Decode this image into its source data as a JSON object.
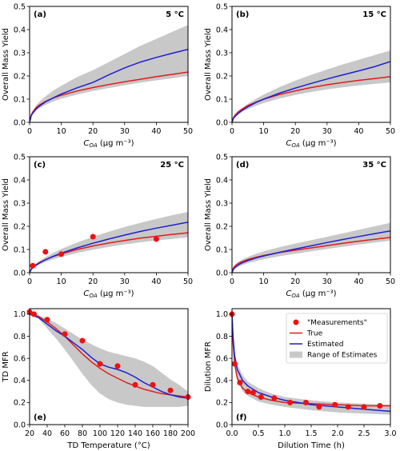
{
  "colors": {
    "true": "#e31a1c",
    "estimated": "#1f1fd1",
    "range": "#c8c8c8",
    "measurement": "#ee1111"
  },
  "chart_data": [
    {
      "type": "line",
      "panel_label": "(a)",
      "temp_label": "5 °C",
      "xlabel_var": "C",
      "xlabel_sub": "OA",
      "xlabel_unit": " (μg m⁻³)",
      "ylabel": "Overall Mass Yield",
      "xlim": [
        0,
        50
      ],
      "ylim": [
        0,
        0.5
      ],
      "xticks": [
        0,
        10,
        20,
        30,
        40,
        50
      ],
      "yticks": [
        0,
        0.1,
        0.2,
        0.3,
        0.4,
        0.5
      ],
      "x": [
        0,
        0.5,
        1,
        2,
        3,
        5,
        7.5,
        10,
        15,
        20,
        25,
        30,
        35,
        40,
        45,
        50
      ],
      "series": [
        {
          "name": "True",
          "values": [
            0,
            0.032,
            0.045,
            0.062,
            0.074,
            0.09,
            0.105,
            0.117,
            0.135,
            0.15,
            0.163,
            0.175,
            0.186,
            0.197,
            0.207,
            0.217
          ]
        },
        {
          "name": "Estimated",
          "values": [
            0,
            0.028,
            0.04,
            0.057,
            0.069,
            0.088,
            0.106,
            0.122,
            0.149,
            0.172,
            0.205,
            0.235,
            0.26,
            0.28,
            0.298,
            0.315
          ]
        }
      ],
      "band_lower": [
        0,
        0.024,
        0.035,
        0.05,
        0.06,
        0.075,
        0.09,
        0.102,
        0.12,
        0.135,
        0.148,
        0.16,
        0.171,
        0.181,
        0.19,
        0.2
      ],
      "band_upper": [
        0,
        0.035,
        0.05,
        0.072,
        0.088,
        0.112,
        0.137,
        0.158,
        0.195,
        0.225,
        0.26,
        0.295,
        0.33,
        0.36,
        0.39,
        0.42
      ]
    },
    {
      "type": "line",
      "panel_label": "(b)",
      "temp_label": "15 °C",
      "xlabel_var": "C",
      "xlabel_sub": "OA",
      "xlabel_unit": " (μg m⁻³)",
      "ylabel": "Overall Mass Yield",
      "xlim": [
        0,
        50
      ],
      "ylim": [
        0,
        0.5
      ],
      "xticks": [
        0,
        10,
        20,
        30,
        40,
        50
      ],
      "yticks": [
        0,
        0.1,
        0.2,
        0.3,
        0.4,
        0.5
      ],
      "x": [
        0,
        0.5,
        1,
        2,
        3,
        5,
        7.5,
        10,
        15,
        20,
        25,
        30,
        35,
        40,
        45,
        50
      ],
      "series": [
        {
          "name": "True",
          "values": [
            0,
            0.022,
            0.032,
            0.046,
            0.056,
            0.072,
            0.087,
            0.1,
            0.12,
            0.136,
            0.15,
            0.162,
            0.172,
            0.181,
            0.189,
            0.197
          ]
        },
        {
          "name": "Estimated",
          "values": [
            0,
            0.018,
            0.026,
            0.039,
            0.05,
            0.067,
            0.085,
            0.1,
            0.126,
            0.148,
            0.168,
            0.187,
            0.205,
            0.222,
            0.24,
            0.262
          ]
        }
      ],
      "band_lower": [
        0,
        0.016,
        0.023,
        0.034,
        0.043,
        0.057,
        0.071,
        0.083,
        0.103,
        0.118,
        0.131,
        0.142,
        0.151,
        0.159,
        0.166,
        0.172
      ],
      "band_upper": [
        0,
        0.022,
        0.032,
        0.047,
        0.059,
        0.08,
        0.101,
        0.12,
        0.152,
        0.18,
        0.205,
        0.228,
        0.25,
        0.27,
        0.29,
        0.31
      ]
    },
    {
      "type": "line",
      "panel_label": "(c)",
      "temp_label": "25 °C",
      "xlabel_var": "C",
      "xlabel_sub": "OA",
      "xlabel_unit": " (μg m⁻³)",
      "ylabel": "Overall Mass Yield",
      "xlim": [
        0,
        50
      ],
      "ylim": [
        0,
        0.5
      ],
      "xticks": [
        0,
        10,
        20,
        30,
        40,
        50
      ],
      "yticks": [
        0,
        0.1,
        0.2,
        0.3,
        0.4,
        0.5
      ],
      "x": [
        0,
        0.5,
        1,
        2,
        3,
        5,
        7.5,
        10,
        15,
        20,
        25,
        30,
        35,
        40,
        45,
        50
      ],
      "series": [
        {
          "name": "True",
          "values": [
            0,
            0.016,
            0.023,
            0.034,
            0.043,
            0.056,
            0.07,
            0.081,
            0.1,
            0.115,
            0.128,
            0.139,
            0.149,
            0.157,
            0.165,
            0.172
          ]
        },
        {
          "name": "Estimated",
          "values": [
            0,
            0.014,
            0.021,
            0.032,
            0.041,
            0.056,
            0.071,
            0.084,
            0.107,
            0.127,
            0.145,
            0.162,
            0.178,
            0.192,
            0.205,
            0.218
          ]
        }
      ],
      "band_lower": [
        0,
        0.012,
        0.018,
        0.027,
        0.034,
        0.046,
        0.058,
        0.068,
        0.085,
        0.099,
        0.111,
        0.122,
        0.131,
        0.139,
        0.146,
        0.153
      ],
      "band_upper": [
        0,
        0.017,
        0.025,
        0.038,
        0.049,
        0.067,
        0.086,
        0.102,
        0.13,
        0.155,
        0.177,
        0.197,
        0.215,
        0.232,
        0.248,
        0.262
      ],
      "points": {
        "name": "Measurements",
        "x": [
          1,
          5,
          10,
          20,
          40
        ],
        "y": [
          0.03,
          0.09,
          0.08,
          0.155,
          0.145
        ]
      }
    },
    {
      "type": "line",
      "panel_label": "(d)",
      "temp_label": "35 °C",
      "xlabel_var": "C",
      "xlabel_sub": "OA",
      "xlabel_unit": " (μg m⁻³)",
      "ylabel": "Overall Mass Yield",
      "xlim": [
        0,
        50
      ],
      "ylim": [
        0,
        0.5
      ],
      "xticks": [
        0,
        10,
        20,
        30,
        40,
        50
      ],
      "yticks": [
        0,
        0.1,
        0.2,
        0.3,
        0.4,
        0.5
      ],
      "x": [
        0,
        0.5,
        1,
        2,
        3,
        5,
        7.5,
        10,
        15,
        20,
        25,
        30,
        35,
        40,
        45,
        50
      ],
      "series": [
        {
          "name": "True",
          "values": [
            0,
            0.022,
            0.03,
            0.04,
            0.047,
            0.057,
            0.066,
            0.074,
            0.087,
            0.097,
            0.107,
            0.117,
            0.127,
            0.136,
            0.144,
            0.152
          ]
        },
        {
          "name": "Estimated",
          "values": [
            0,
            0.016,
            0.023,
            0.033,
            0.041,
            0.052,
            0.063,
            0.072,
            0.088,
            0.102,
            0.116,
            0.13,
            0.143,
            0.156,
            0.168,
            0.18
          ]
        }
      ],
      "band_lower": [
        0,
        0.012,
        0.018,
        0.026,
        0.032,
        0.041,
        0.05,
        0.058,
        0.071,
        0.082,
        0.092,
        0.102,
        0.112,
        0.121,
        0.13,
        0.138
      ],
      "band_upper": [
        0,
        0.025,
        0.034,
        0.046,
        0.055,
        0.068,
        0.081,
        0.092,
        0.11,
        0.126,
        0.14,
        0.155,
        0.17,
        0.185,
        0.2,
        0.215
      ]
    },
    {
      "type": "line",
      "panel_label": "(e)",
      "temp_label": "",
      "xlabel": "TD Temperature (°C)",
      "ylabel": "TD MFR",
      "xlim": [
        20,
        200
      ],
      "ylim": [
        0,
        1.05
      ],
      "xticks": [
        20,
        40,
        60,
        80,
        100,
        120,
        140,
        160,
        180,
        200
      ],
      "yticks": [
        0,
        0.2,
        0.4,
        0.6,
        0.8,
        1.0
      ],
      "x": [
        20,
        30,
        40,
        50,
        60,
        70,
        80,
        90,
        100,
        110,
        120,
        130,
        140,
        150,
        160,
        170,
        180,
        190,
        200
      ],
      "series": [
        {
          "name": "True",
          "values": [
            1.0,
            0.98,
            0.93,
            0.87,
            0.8,
            0.72,
            0.64,
            0.57,
            0.51,
            0.46,
            0.42,
            0.38,
            0.35,
            0.32,
            0.3,
            0.28,
            0.27,
            0.26,
            0.25
          ]
        },
        {
          "name": "Estimated",
          "values": [
            1.0,
            0.97,
            0.91,
            0.85,
            0.8,
            0.74,
            0.68,
            0.61,
            0.55,
            0.52,
            0.5,
            0.47,
            0.43,
            0.38,
            0.34,
            0.3,
            0.27,
            0.25,
            0.24
          ]
        }
      ],
      "band_lower": [
        1.0,
        0.96,
        0.87,
        0.78,
        0.68,
        0.57,
        0.46,
        0.36,
        0.28,
        0.23,
        0.2,
        0.18,
        0.17,
        0.16,
        0.16,
        0.16,
        0.16,
        0.16,
        0.17
      ],
      "band_upper": [
        1.0,
        0.99,
        0.96,
        0.92,
        0.87,
        0.82,
        0.77,
        0.73,
        0.69,
        0.66,
        0.64,
        0.62,
        0.6,
        0.57,
        0.53,
        0.47,
        0.41,
        0.36,
        0.3
      ],
      "points": {
        "name": "Measurements",
        "x": [
          20,
          25,
          40,
          60,
          80,
          100,
          120,
          140,
          160,
          180,
          200
        ],
        "y": [
          1.02,
          1.0,
          0.95,
          0.82,
          0.76,
          0.55,
          0.53,
          0.36,
          0.36,
          0.31,
          0.25
        ]
      }
    },
    {
      "type": "line",
      "panel_label": "(f)",
      "temp_label": "",
      "xlabel": "Dilution Time (h)",
      "ylabel": "Dilution MFR",
      "xlim": [
        0,
        3.0
      ],
      "ylim": [
        0,
        1.05
      ],
      "xticks": [
        0,
        0.5,
        1.0,
        1.5,
        2.0,
        2.5,
        3.0
      ],
      "yticks": [
        0,
        0.2,
        0.4,
        0.6,
        0.8,
        1.0
      ],
      "x": [
        0,
        0.02,
        0.05,
        0.1,
        0.2,
        0.3,
        0.5,
        0.75,
        1.0,
        1.5,
        2.0,
        2.5,
        3.0
      ],
      "series": [
        {
          "name": "True",
          "values": [
            1.0,
            0.75,
            0.55,
            0.42,
            0.33,
            0.29,
            0.25,
            0.22,
            0.2,
            0.19,
            0.18,
            0.17,
            0.17
          ]
        },
        {
          "name": "Estimated",
          "values": [
            1.0,
            0.8,
            0.62,
            0.5,
            0.4,
            0.35,
            0.29,
            0.25,
            0.22,
            0.18,
            0.16,
            0.14,
            0.12
          ]
        }
      ],
      "band_lower": [
        1.0,
        0.72,
        0.52,
        0.4,
        0.3,
        0.26,
        0.21,
        0.18,
        0.16,
        0.13,
        0.11,
        0.1,
        0.09
      ],
      "band_upper": [
        1.0,
        0.82,
        0.66,
        0.55,
        0.45,
        0.39,
        0.33,
        0.28,
        0.25,
        0.22,
        0.2,
        0.19,
        0.18
      ],
      "points": {
        "name": "Measurements",
        "x": [
          0,
          0.05,
          0.15,
          0.3,
          0.4,
          0.55,
          0.8,
          1.1,
          1.4,
          1.65,
          1.95,
          2.2,
          2.5,
          2.8
        ],
        "y": [
          1.0,
          0.55,
          0.38,
          0.3,
          0.29,
          0.25,
          0.24,
          0.2,
          0.2,
          0.16,
          0.18,
          0.16,
          0.16,
          0.17
        ]
      },
      "legend": {
        "position": "top-right",
        "entries": [
          "\"Measurements\"",
          "True",
          "Estimated",
          "Range of Estimates"
        ]
      }
    }
  ]
}
